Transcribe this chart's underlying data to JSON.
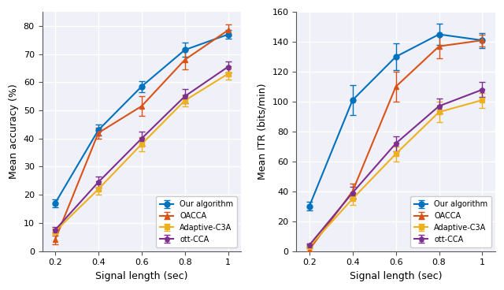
{
  "x": [
    0.2,
    0.4,
    0.6,
    0.8,
    1.0
  ],
  "acc_our": [
    17.0,
    43.0,
    58.5,
    71.5,
    77.0
  ],
  "acc_our_err": [
    1.5,
    2.0,
    2.0,
    2.5,
    1.5
  ],
  "acc_oacca": [
    4.0,
    42.0,
    51.5,
    68.0,
    78.5
  ],
  "acc_oacca_err": [
    1.5,
    2.0,
    3.5,
    3.5,
    2.0
  ],
  "acc_c3a": [
    7.0,
    22.0,
    38.0,
    53.5,
    63.0
  ],
  "acc_c3a_err": [
    1.0,
    2.0,
    2.5,
    2.0,
    2.0
  ],
  "acc_ott": [
    7.5,
    24.5,
    40.0,
    55.0,
    65.5
  ],
  "acc_ott_err": [
    1.0,
    2.0,
    2.5,
    2.5,
    2.0
  ],
  "itr_our": [
    30.0,
    101.0,
    130.0,
    145.0,
    141.0
  ],
  "itr_our_err": [
    3.0,
    10.0,
    9.0,
    7.0,
    5.0
  ],
  "itr_oacca": [
    1.0,
    40.0,
    110.0,
    137.0,
    141.0
  ],
  "itr_oacca_err": [
    1.0,
    5.0,
    10.0,
    8.0,
    4.0
  ],
  "itr_c3a": [
    3.0,
    35.0,
    65.0,
    93.0,
    101.0
  ],
  "itr_c3a_err": [
    1.0,
    4.0,
    5.0,
    7.0,
    5.0
  ],
  "itr_ott": [
    4.0,
    39.0,
    72.0,
    97.0,
    108.0
  ],
  "itr_ott_err": [
    1.0,
    4.0,
    5.0,
    5.0,
    5.0
  ],
  "color_our": "#0072BD",
  "color_oacca": "#D95319",
  "color_c3a": "#EDB120",
  "color_ott": "#7E2F8E",
  "legend_labels": [
    "Our algorithm",
    "OACCA",
    "Adaptive-C3A",
    "ott-CCA"
  ],
  "xlabel": "Signal length (sec)",
  "ylabel_acc": "Mean accuracy (%)",
  "ylabel_itr": "Mean ITR (bits/min)",
  "acc_ylim": [
    0,
    85
  ],
  "itr_ylim": [
    0,
    160
  ],
  "acc_yticks": [
    0,
    10,
    20,
    30,
    40,
    50,
    60,
    70,
    80
  ],
  "itr_yticks": [
    0,
    20,
    40,
    60,
    80,
    100,
    120,
    140,
    160
  ],
  "xticks": [
    0.2,
    0.4,
    0.6,
    0.8,
    1.0
  ],
  "xticklabels": [
    "0.2",
    "0.4",
    "0.6",
    "0.8",
    "1"
  ],
  "bg_color": "#f0f0f8",
  "grid_color": "#ffffff"
}
